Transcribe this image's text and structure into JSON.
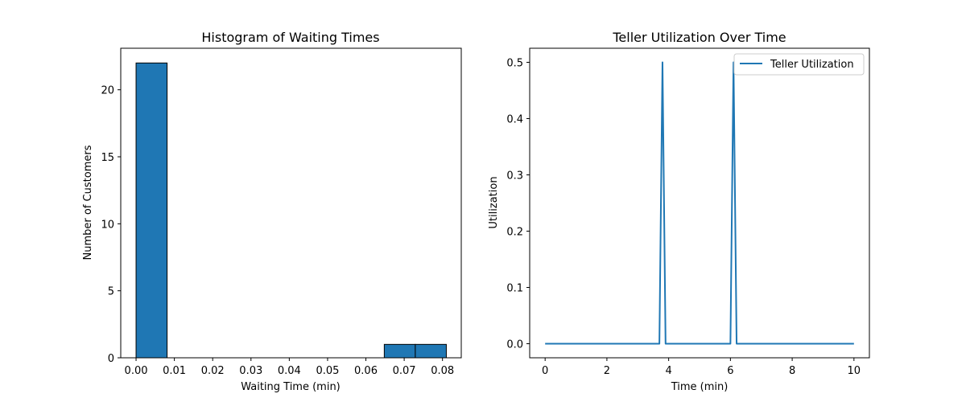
{
  "chart_data": [
    {
      "type": "bar",
      "title": "Histogram of Waiting Times",
      "xlabel": "Waiting Time (min)",
      "ylabel": "Number of Customers",
      "xlim": [
        -0.004,
        0.0849
      ],
      "ylim": [
        0,
        23.1
      ],
      "xticks": [
        0.0,
        0.01,
        0.02,
        0.03,
        0.04,
        0.05,
        0.06,
        0.07,
        0.08
      ],
      "xtick_labels": [
        "0.00",
        "0.01",
        "0.02",
        "0.03",
        "0.04",
        "0.05",
        "0.06",
        "0.07",
        "0.08"
      ],
      "yticks": [
        0,
        5,
        10,
        15,
        20
      ],
      "ytick_labels": [
        "0",
        "5",
        "10",
        "15",
        "20"
      ],
      "bin_edges": [
        0.0,
        0.0081,
        0.0162,
        0.0243,
        0.0324,
        0.0405,
        0.0486,
        0.0567,
        0.0648,
        0.0729,
        0.081
      ],
      "counts": [
        22,
        0,
        0,
        0,
        0,
        0,
        0,
        0,
        1,
        1
      ],
      "bar_color": "#1f77b4",
      "edge_color": "#000000",
      "grid": false
    },
    {
      "type": "line",
      "title": "Teller Utilization Over Time",
      "xlabel": "Time (min)",
      "ylabel": "Utilization",
      "xlim": [
        -0.5,
        10.5
      ],
      "ylim": [
        -0.025,
        0.525
      ],
      "xticks": [
        0,
        2,
        4,
        6,
        8,
        10
      ],
      "xtick_labels": [
        "0",
        "2",
        "4",
        "6",
        "8",
        "10"
      ],
      "yticks": [
        0.0,
        0.1,
        0.2,
        0.3,
        0.4,
        0.5
      ],
      "ytick_labels": [
        "0.0",
        "0.1",
        "0.2",
        "0.3",
        "0.4",
        "0.5"
      ],
      "legend_position": "top-right",
      "grid": false,
      "series": [
        {
          "name": "Teller Utilization",
          "color": "#1f77b4",
          "x": [
            0,
            3.7,
            3.8,
            3.9,
            6.0,
            6.1,
            6.2,
            10
          ],
          "y": [
            0,
            0,
            0.5,
            0,
            0,
            0.5,
            0,
            0
          ]
        }
      ]
    }
  ]
}
